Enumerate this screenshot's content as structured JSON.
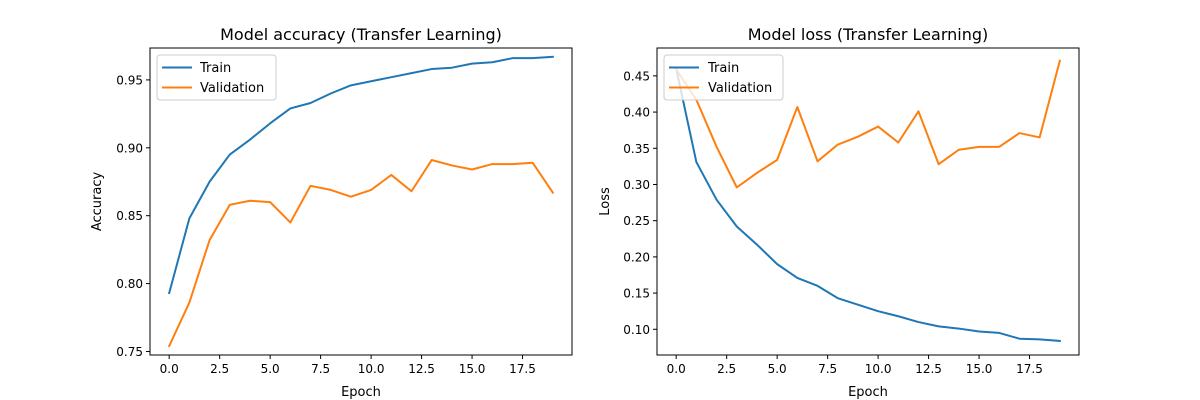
{
  "chart_data": [
    {
      "type": "line",
      "title": "Model accuracy (Transfer Learning)",
      "xlabel": "Epoch",
      "ylabel": "Accuracy",
      "xlim": [
        -0.95,
        19.95
      ],
      "ylim": [
        0.7474,
        0.9735
      ],
      "xticks": [
        0.0,
        2.5,
        5.0,
        7.5,
        10.0,
        12.5,
        15.0,
        17.5
      ],
      "xtick_labels": [
        "0.0",
        "2.5",
        "5.0",
        "7.5",
        "10.0",
        "12.5",
        "15.0",
        "17.5"
      ],
      "yticks": [
        0.75,
        0.8,
        0.85,
        0.9,
        0.95
      ],
      "ytick_labels": [
        "0.75",
        "0.80",
        "0.85",
        "0.90",
        "0.95"
      ],
      "grid": false,
      "legend_position": "upper-left",
      "x": [
        0,
        1,
        2,
        3,
        4,
        5,
        6,
        7,
        8,
        9,
        10,
        11,
        12,
        13,
        14,
        15,
        16,
        17,
        18,
        19
      ],
      "series": [
        {
          "name": "Train",
          "color": "#1f77b4",
          "values": [
            0.793,
            0.848,
            0.875,
            0.895,
            0.906,
            0.918,
            0.929,
            0.933,
            0.94,
            0.946,
            0.949,
            0.952,
            0.955,
            0.958,
            0.959,
            0.962,
            0.963,
            0.966,
            0.966,
            0.967
          ]
        },
        {
          "name": "Validation",
          "color": "#ff7f0e",
          "values": [
            0.754,
            0.786,
            0.832,
            0.858,
            0.861,
            0.86,
            0.845,
            0.872,
            0.869,
            0.864,
            0.869,
            0.88,
            0.868,
            0.891,
            0.887,
            0.884,
            0.888,
            0.888,
            0.889,
            0.867
          ]
        }
      ]
    },
    {
      "type": "line",
      "title": "Model loss (Transfer Learning)",
      "xlabel": "Epoch",
      "ylabel": "Loss",
      "xlim": [
        -0.95,
        19.95
      ],
      "ylim": [
        0.0645,
        0.4885
      ],
      "xticks": [
        0.0,
        2.5,
        5.0,
        7.5,
        10.0,
        12.5,
        15.0,
        17.5
      ],
      "xtick_labels": [
        "0.0",
        "2.5",
        "5.0",
        "7.5",
        "10.0",
        "12.5",
        "15.0",
        "17.5"
      ],
      "yticks": [
        0.1,
        0.15,
        0.2,
        0.25,
        0.3,
        0.35,
        0.4,
        0.45
      ],
      "ytick_labels": [
        "0.10",
        "0.15",
        "0.20",
        "0.25",
        "0.30",
        "0.35",
        "0.40",
        "0.45"
      ],
      "grid": false,
      "legend_position": "upper-left",
      "x": [
        0,
        1,
        2,
        3,
        4,
        5,
        6,
        7,
        8,
        9,
        10,
        11,
        12,
        13,
        14,
        15,
        16,
        17,
        18,
        19
      ],
      "series": [
        {
          "name": "Train",
          "color": "#1f77b4",
          "values": [
            0.46,
            0.331,
            0.279,
            0.242,
            0.217,
            0.19,
            0.171,
            0.16,
            0.143,
            0.134,
            0.125,
            0.118,
            0.11,
            0.104,
            0.101,
            0.097,
            0.095,
            0.087,
            0.086,
            0.084
          ]
        },
        {
          "name": "Validation",
          "color": "#ff7f0e",
          "values": [
            0.459,
            0.417,
            0.352,
            0.296,
            0.316,
            0.334,
            0.407,
            0.332,
            0.355,
            0.366,
            0.38,
            0.358,
            0.401,
            0.328,
            0.348,
            0.352,
            0.352,
            0.371,
            0.365,
            0.471
          ]
        }
      ]
    }
  ]
}
